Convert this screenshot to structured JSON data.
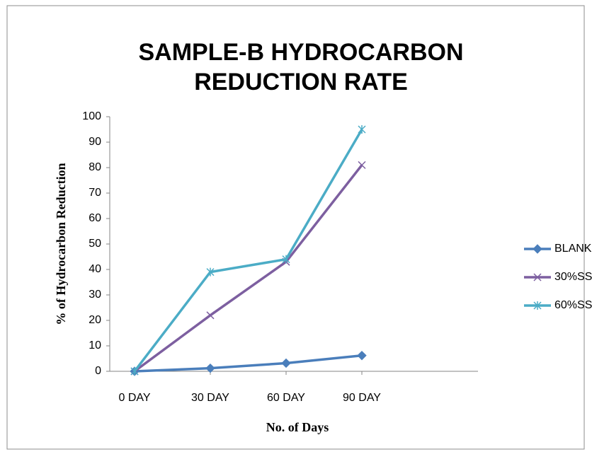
{
  "chart_data": {
    "type": "line",
    "title": [
      "SAMPLE-B HYDROCARBON",
      "REDUCTION RATE"
    ],
    "xlabel": "No. of Days",
    "ylabel": "% of Hydrocarbon Reduction",
    "categories": [
      "0 DAY",
      "30 DAY",
      "60 DAY",
      "90 DAY"
    ],
    "series": [
      {
        "name": "BLANK",
        "color": "#4a7ebb",
        "marker": "diamond",
        "values": [
          0,
          1.2,
          3.2,
          6.2
        ]
      },
      {
        "name": "30%SS",
        "color": "#7d5fa0",
        "marker": "x",
        "values": [
          0,
          22,
          43,
          81
        ]
      },
      {
        "name": "60%SS",
        "color": "#4bacc6",
        "marker": "asterisk",
        "values": [
          0,
          39,
          44,
          95
        ]
      }
    ],
    "ylim": [
      0,
      100
    ],
    "yticks": [
      0,
      10,
      20,
      30,
      40,
      50,
      60,
      70,
      80,
      90,
      100
    ],
    "grid": false,
    "legend": "right"
  }
}
